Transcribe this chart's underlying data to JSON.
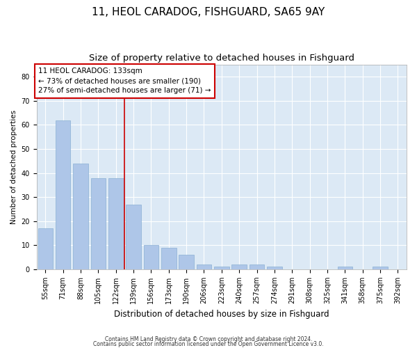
{
  "title1": "11, HEOL CARADOG, FISHGUARD, SA65 9AY",
  "title2": "Size of property relative to detached houses in Fishguard",
  "xlabel": "Distribution of detached houses by size in Fishguard",
  "ylabel": "Number of detached properties",
  "categories": [
    "55sqm",
    "71sqm",
    "88sqm",
    "105sqm",
    "122sqm",
    "139sqm",
    "156sqm",
    "173sqm",
    "190sqm",
    "206sqm",
    "223sqm",
    "240sqm",
    "257sqm",
    "274sqm",
    "291sqm",
    "308sqm",
    "325sqm",
    "341sqm",
    "358sqm",
    "375sqm",
    "392sqm"
  ],
  "values": [
    17,
    62,
    44,
    38,
    38,
    27,
    10,
    9,
    6,
    2,
    1,
    2,
    2,
    1,
    0,
    0,
    0,
    1,
    0,
    1,
    0
  ],
  "bar_color": "#aec6e8",
  "bar_edge_color": "#8aafd4",
  "property_line_x": 4.5,
  "property_label": "11 HEOL CARADOG: 133sqm",
  "annotation_line1": "← 73% of detached houses are smaller (190)",
  "annotation_line2": "27% of semi-detached houses are larger (71) →",
  "annotation_box_color": "#ffffff",
  "annotation_box_edge": "#cc0000",
  "red_line_color": "#cc0000",
  "plot_bg_color": "#dce9f5",
  "ylim": [
    0,
    85
  ],
  "yticks": [
    0,
    10,
    20,
    30,
    40,
    50,
    60,
    70,
    80
  ],
  "footnote1": "Contains HM Land Registry data © Crown copyright and database right 2024.",
  "footnote2": "Contains public sector information licensed under the Open Government Licence v3.0.",
  "title1_fontsize": 11,
  "title2_fontsize": 9.5,
  "xlabel_fontsize": 8.5,
  "ylabel_fontsize": 7.5,
  "tick_fontsize": 7,
  "annot_fontsize": 7.5,
  "footnote_fontsize": 5.5
}
